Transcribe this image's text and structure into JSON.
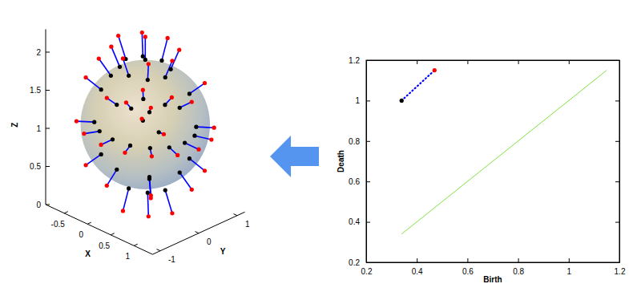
{
  "chart_data": [
    {
      "type": "scatter3d",
      "x_label": "X",
      "y_label": "Y",
      "z_label": "Z",
      "xlim": [
        -0.9,
        1.4
      ],
      "ylim": [
        -1.2,
        1.2
      ],
      "zlim": [
        0,
        2.3
      ],
      "xticks": [
        -0.5,
        0,
        0.5,
        1
      ],
      "yticks": [
        -1,
        0,
        1
      ],
      "zticks": [
        0,
        0.5,
        1,
        1.5,
        2
      ],
      "sphere": {
        "center": [
          0.25,
          0,
          1.1
        ],
        "radius": 0.85
      },
      "series": [
        {
          "type": "scatter",
          "color": "#000000",
          "marker": "circle",
          "x": [
            0.25,
            0.68,
            0.25,
            -0.17,
            0.25,
            0.55,
            -0.05,
            0.55,
            -0.05,
            0.99,
            0.25,
            0.77,
            -0.27,
            0.77,
            -0.49,
            1.1,
            0.25,
            0.85,
            1.04,
            -0.08,
            0.58,
            1.04,
            0.85,
            -0.35,
            0.99,
            0.25,
            0.77,
            0.77,
            -0.27,
            0.68,
            0.25,
            0.55,
            0.63,
            0.89,
            0.51,
            0.72,
            0.76,
            0.93
          ],
          "y": [
            0,
            0,
            -0.43,
            0,
            0.43,
            -0.3,
            0.3,
            0.3,
            -0.3,
            0,
            -0.74,
            -0.52,
            -0.52,
            0.52,
            0,
            0,
            -0.85,
            -0.6,
            0.33,
            -0.79,
            -0.79,
            -0.33,
            0.6,
            -0.6,
            0,
            -0.74,
            -0.52,
            0.52,
            -0.52,
            0,
            -0.43,
            -0.3,
            -0.51,
            -0.26,
            -0.68,
            -0.63,
            -0.51,
            -0.47
          ],
          "z": [
            1.95,
            1.84,
            1.84,
            1.84,
            1.84,
            1.84,
            1.84,
            1.84,
            1.84,
            1.53,
            1.53,
            1.53,
            1.53,
            1.53,
            1.53,
            1.1,
            1.1,
            1.1,
            1.1,
            1.1,
            1.1,
            1.1,
            1.1,
            1.1,
            0.68,
            0.68,
            0.68,
            0.68,
            0.68,
            0.36,
            0.36,
            0.36,
            1.66,
            1.6,
            1.54,
            1.43,
            0.65,
            1.3
          ]
        },
        {
          "type": "scatter",
          "color": "#ff0000",
          "marker": "circle",
          "line_style": "solid",
          "x": [
            0.25,
            0.83,
            0.25,
            -0.33,
            0.25,
            0.65,
            -0.15,
            0.65,
            -0.15,
            1.25,
            0.25,
            0.95,
            -0.45,
            0.95,
            -0.75,
            1.4,
            0.25,
            1.06,
            1.31,
            -0.19,
            0.69,
            1.31,
            1.06,
            -0.56,
            1.25,
            0.25,
            0.95,
            0.95,
            -0.45,
            0.83,
            0.25,
            0.65,
            0.77,
            1.11,
            0.6,
            0.88,
            0.94,
            1.17
          ],
          "y": [
            0,
            0,
            -0.58,
            0,
            0.58,
            -0.4,
            0.4,
            0.4,
            -0.4,
            0,
            -1.0,
            -0.7,
            -0.7,
            0.7,
            0,
            0,
            -1.15,
            -0.81,
            0.44,
            -1.06,
            -1.06,
            -0.44,
            0.81,
            -0.81,
            0,
            -1.0,
            -0.7,
            0.7,
            -0.7,
            0,
            -0.58,
            -0.4,
            -0.69,
            -0.35,
            -0.92,
            -0.85,
            -0.69,
            -0.63
          ],
          "z": [
            2.25,
            2.1,
            2.1,
            2.1,
            2.1,
            2.1,
            2.1,
            2.1,
            2.1,
            1.68,
            1.68,
            1.68,
            1.68,
            1.68,
            1.68,
            1.1,
            1.1,
            1.1,
            1.1,
            1.1,
            1.1,
            1.1,
            1.1,
            1.1,
            0.53,
            0.53,
            0.53,
            0.53,
            0.53,
            0.1,
            0.1,
            0.1,
            1.86,
            1.78,
            1.7,
            1.55,
            0.49,
            1.38
          ]
        }
      ]
    },
    {
      "type": "scatter",
      "x_label": "Birth",
      "y_label": "Death",
      "xlim": [
        0.2,
        1.2
      ],
      "ylim": [
        0.2,
        1.2
      ],
      "xticks": [
        0.2,
        0.4,
        0.6,
        0.8,
        1,
        1.2
      ],
      "yticks": [
        0.2,
        0.4,
        0.6,
        0.8,
        1,
        1.2
      ],
      "series": [
        {
          "type": "line",
          "color": "#80e040",
          "x": [
            0.34,
            1.15
          ],
          "y": [
            0.34,
            1.15
          ]
        },
        {
          "type": "scatter",
          "color": "#000000",
          "marker": "circle",
          "x": [
            0.34
          ],
          "y": [
            1.0
          ]
        },
        {
          "type": "scatter",
          "color": "#ff0000",
          "marker": "circle",
          "line_style": "dotted",
          "x": [
            0.47
          ],
          "y": [
            1.15
          ]
        }
      ]
    }
  ]
}
